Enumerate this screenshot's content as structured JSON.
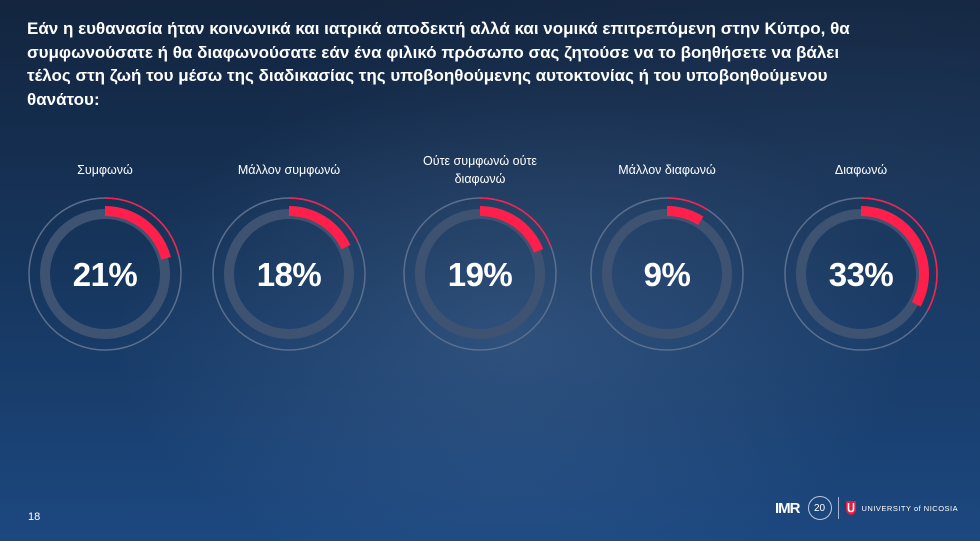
{
  "title": "Εάν η ευθανασία ήταν κοινωνικά και ιατρικά αποδεκτή αλλά και νομικά επιτρεπόμενη στην Κύπρο, θα συμφωνούσατε ή θα διαφωνούσατε εάν ένα φιλικό πρόσωπο σας ζητούσε να το βοηθήσετε να βάλει τέλος στη ζωή του μέσω της διαδικασίας της υποβοηθούμενης αυτοκτονίας ή του υποβοηθούμενου θανάτου:",
  "chart_data": {
    "type": "pie",
    "categories": [
      "Συμφωνώ",
      "Μάλλον συμφωνώ",
      "Ούτε συμφωνώ ούτε διαφωνώ",
      "Μάλλον διαφωνώ",
      "Διαφωνώ"
    ],
    "values": [
      21,
      18,
      19,
      9,
      33
    ],
    "value_labels": [
      "21%",
      "18%",
      "19%",
      "9%",
      "33%"
    ],
    "unit": "%"
  },
  "items": [
    {
      "label": "Συμφωνώ",
      "value_text": "21%"
    },
    {
      "label": "Μάλλον συμφωνώ",
      "value_text": "18%"
    },
    {
      "label": "Ούτε συμφωνώ ούτε διαφωνώ",
      "value_text": "19%"
    },
    {
      "label": "Μάλλον διαφωνώ",
      "value_text": "9%"
    },
    {
      "label": "Διαφωνώ",
      "value_text": "33%"
    }
  ],
  "colors": {
    "accent": "#ff1f4b",
    "track": "#3e5372",
    "outer_ring": "#5c6f8d",
    "background_top": "#13253f",
    "background_bottom": "#1c4880"
  },
  "footer": {
    "page_number": "18",
    "imr_logo": "IMR",
    "anniversary_badge": "20",
    "university": "UNIVERSITY of NICOSIA"
  }
}
